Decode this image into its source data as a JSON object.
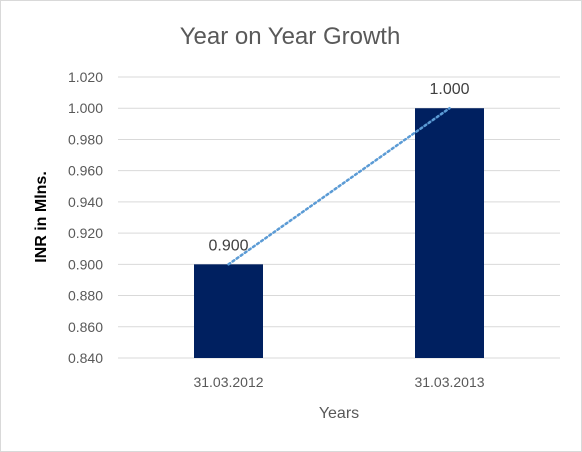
{
  "chart_data": {
    "type": "bar",
    "title": "Year on Year Growth",
    "xlabel": "Years",
    "ylabel": "INR in Mlns.",
    "categories": [
      "31.03.2012",
      "31.03.2013"
    ],
    "values": [
      0.9,
      1.0
    ],
    "data_labels": [
      "0.900",
      "1.000"
    ],
    "ylim": [
      0.84,
      1.02
    ],
    "yticks": [
      "0.840",
      "0.860",
      "0.880",
      "0.900",
      "0.920",
      "0.940",
      "0.960",
      "0.980",
      "1.000",
      "1.020"
    ],
    "grid": true,
    "legend": "none",
    "trendline": "linear dotted",
    "bar_color": "#002060",
    "trendline_color": "#5b9bd5",
    "gridline_color": "#d9d9d9"
  }
}
